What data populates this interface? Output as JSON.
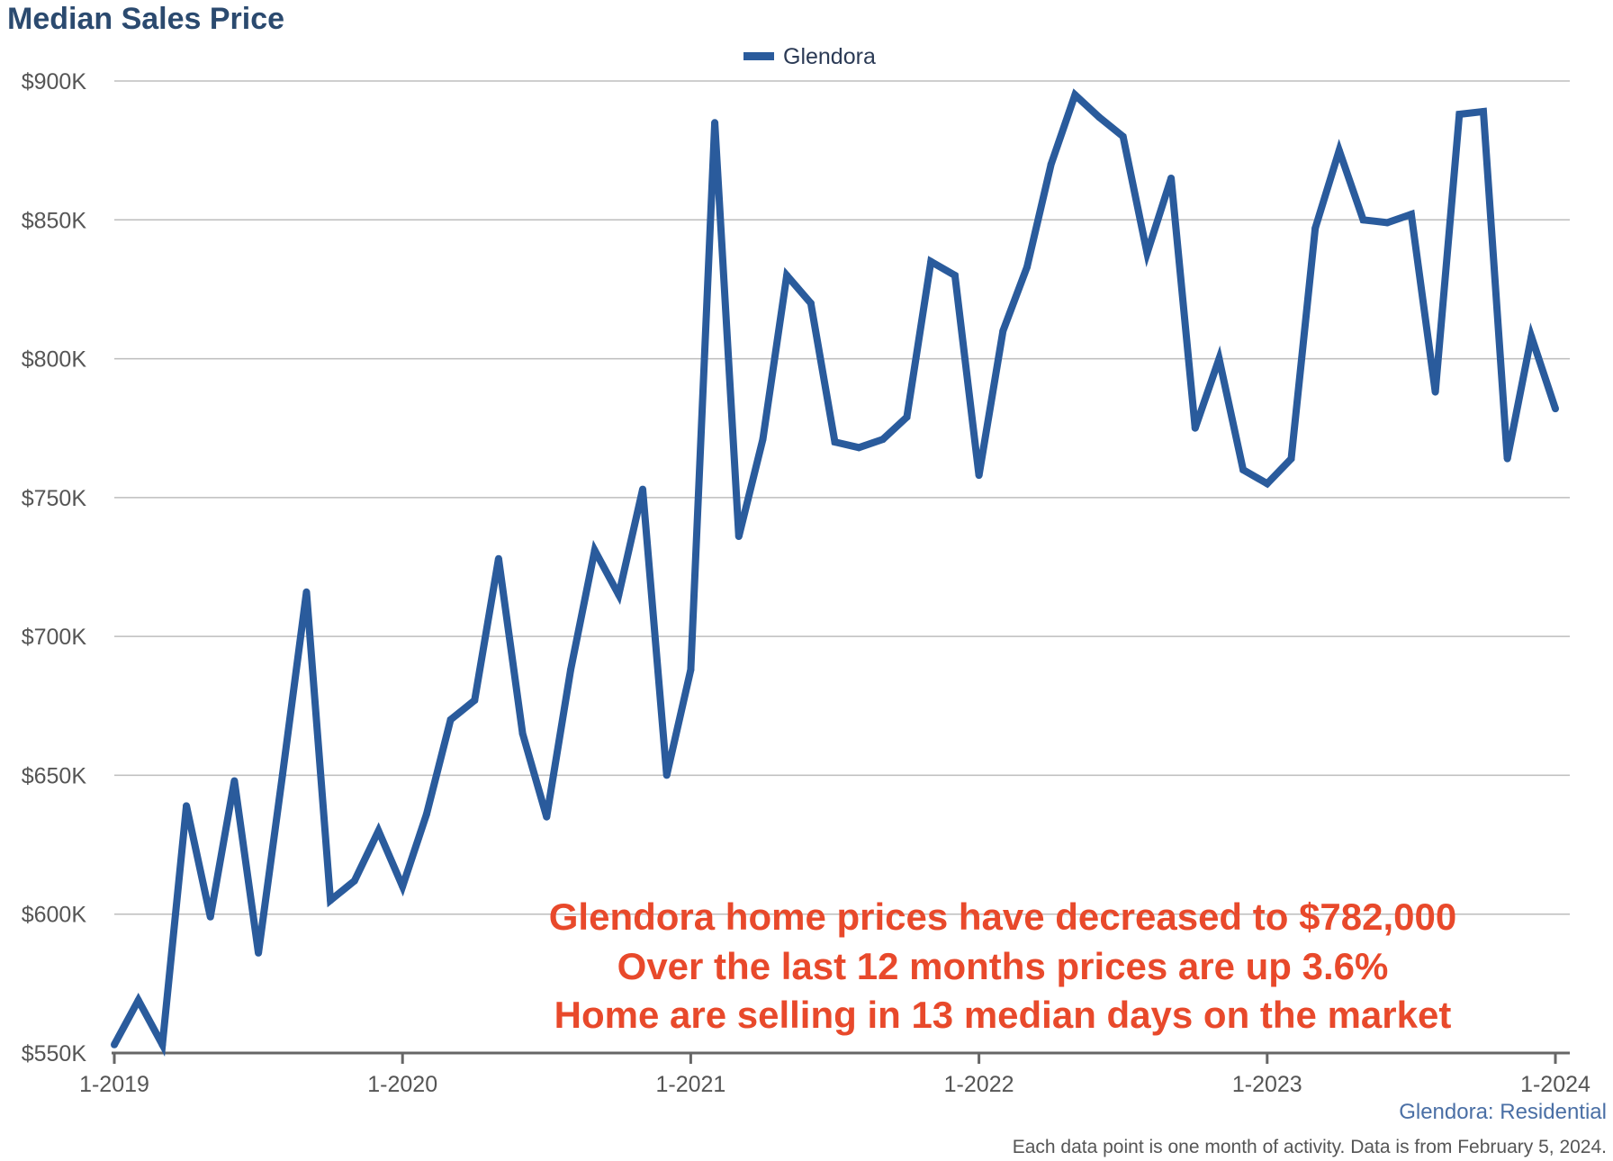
{
  "chart_data": {
    "type": "line",
    "title": "Median Sales Price",
    "xlabel": "",
    "ylabel": "",
    "ylim": [
      550000,
      900000
    ],
    "y_ticks": [
      550000,
      600000,
      650000,
      700000,
      750000,
      800000,
      850000,
      900000
    ],
    "y_tick_labels": [
      "$550K",
      "$600K",
      "$650K",
      "$700K",
      "$750K",
      "$800K",
      "$850K",
      "$900K"
    ],
    "x_tick_labels": [
      "1-2019",
      "1-2020",
      "1-2021",
      "1-2022",
      "1-2023",
      "1-2024"
    ],
    "grid": "horizontal",
    "legend_position": "top-center",
    "line_color": "#2a5b9c",
    "series": [
      {
        "name": "Glendora",
        "x": [
          "1-2019",
          "2-2019",
          "3-2019",
          "4-2019",
          "5-2019",
          "6-2019",
          "7-2019",
          "8-2019",
          "9-2019",
          "10-2019",
          "11-2019",
          "12-2019",
          "1-2020",
          "2-2020",
          "3-2020",
          "4-2020",
          "5-2020",
          "6-2020",
          "7-2020",
          "8-2020",
          "9-2020",
          "10-2020",
          "11-2020",
          "12-2020",
          "1-2021",
          "2-2021",
          "3-2021",
          "4-2021",
          "5-2021",
          "6-2021",
          "7-2021",
          "8-2021",
          "9-2021",
          "10-2021",
          "11-2021",
          "12-2021",
          "1-2022",
          "2-2022",
          "3-2022",
          "4-2022",
          "5-2022",
          "6-2022",
          "7-2022",
          "8-2022",
          "9-2022",
          "10-2022",
          "11-2022",
          "12-2022",
          "1-2023",
          "2-2023",
          "3-2023",
          "4-2023",
          "5-2023",
          "6-2023",
          "7-2023",
          "8-2023",
          "9-2023",
          "10-2023",
          "11-2023",
          "12-2023",
          "1-2024"
        ],
        "values": [
          553000,
          569000,
          553000,
          639000,
          599000,
          648000,
          586000,
          650000,
          716000,
          605000,
          612000,
          630000,
          610000,
          636000,
          670000,
          677000,
          728000,
          665000,
          635000,
          688000,
          731000,
          715000,
          753000,
          650000,
          688000,
          885000,
          736000,
          771000,
          830000,
          820000,
          770000,
          768000,
          771000,
          779000,
          835000,
          830000,
          758000,
          810000,
          833000,
          870000,
          895000,
          887000,
          880000,
          838000,
          865000,
          775000,
          800000,
          760000,
          755000,
          764000,
          847000,
          875000,
          850000,
          849000,
          852000,
          788000,
          888000,
          889000,
          764000,
          808000,
          782000
        ]
      }
    ]
  },
  "annotation": {
    "line1": "Glendora home prices have decreased to $782,000",
    "line2": "Over the last 12 months prices are up 3.6%",
    "line3": "Home are selling in 13 median days on the market",
    "color": "#e8492b"
  },
  "source_label": "Glendora: Residential",
  "footnote": "Each data point is one month of activity. Data is from February 5, 2024."
}
